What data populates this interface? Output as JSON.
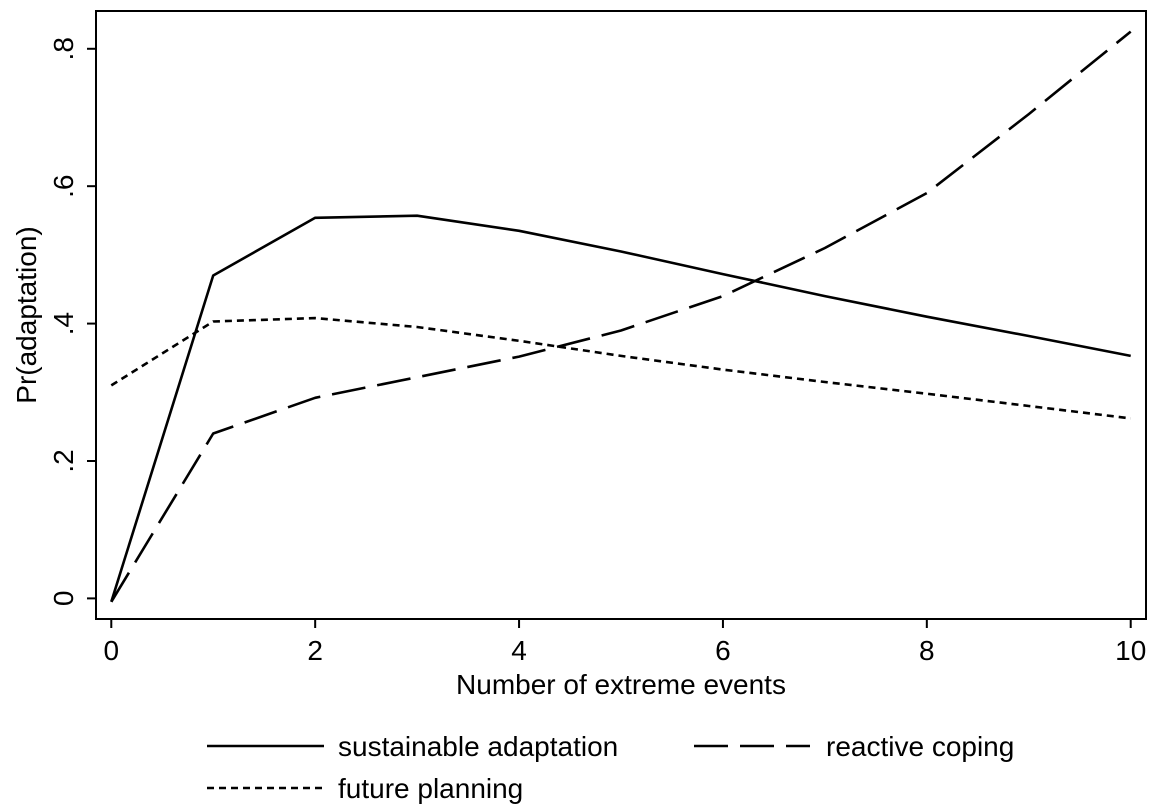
{
  "chart_data": {
    "type": "line",
    "title": "",
    "xlabel": "Number of extreme events",
    "ylabel": "Pr(adaptation)",
    "xlim": [
      -0.15,
      10.15
    ],
    "ylim": [
      -0.03,
      0.855
    ],
    "xticks": [
      0,
      2,
      4,
      6,
      8,
      10
    ],
    "xtick_labels": [
      "0",
      "2",
      "4",
      "6",
      "8",
      "10"
    ],
    "yticks": [
      0,
      0.2,
      0.4,
      0.6,
      0.8
    ],
    "ytick_labels": [
      "0",
      ".2",
      ".4",
      ".6",
      ".8"
    ],
    "grid": false,
    "legend_position": "bottom",
    "series": [
      {
        "name": "sustainable adaptation",
        "style": "solid",
        "x": [
          0,
          1,
          2,
          3,
          4,
          5,
          6,
          7,
          8,
          9,
          10
        ],
        "y": [
          -0.005,
          0.47,
          0.554,
          0.557,
          0.535,
          0.505,
          0.472,
          0.44,
          0.41,
          0.382,
          0.353
        ]
      },
      {
        "name": "reactive coping",
        "style": "longdash",
        "x": [
          0,
          1,
          2,
          3,
          4,
          5,
          6,
          7,
          8,
          9,
          10
        ],
        "y": [
          -0.005,
          0.24,
          0.292,
          0.322,
          0.352,
          0.39,
          0.44,
          0.51,
          0.59,
          0.705,
          0.825
        ]
      },
      {
        "name": "future planning",
        "style": "shortdash",
        "x": [
          0,
          1,
          2,
          3,
          4,
          5,
          6,
          7,
          8,
          9,
          10
        ],
        "y": [
          0.31,
          0.403,
          0.408,
          0.395,
          0.375,
          0.353,
          0.333,
          0.315,
          0.298,
          0.28,
          0.262
        ]
      }
    ]
  }
}
